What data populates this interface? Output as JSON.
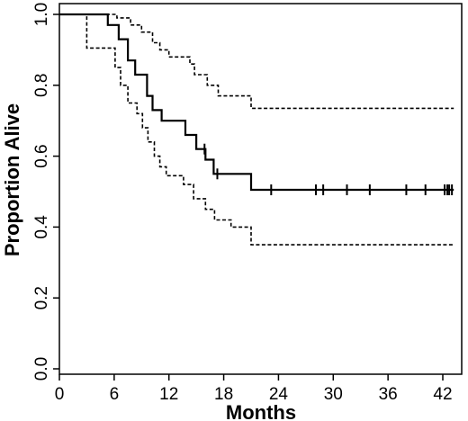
{
  "chart_data": {
    "type": "line",
    "xlabel": "Months",
    "ylabel": "Proportion Alive",
    "xlim": [
      0,
      43.5
    ],
    "ylim": [
      0,
      1.0
    ],
    "x_ticks": [
      "0",
      "6",
      "12",
      "18",
      "24",
      "30",
      "36",
      "42"
    ],
    "y_ticks": [
      "0.0",
      "0.2",
      "0.4",
      "0.6",
      "0.8",
      "1.0"
    ],
    "series": [
      {
        "role": "survival estimate",
        "line_style": "solid",
        "color": "#000000",
        "steps": [
          [
            0,
            1.0
          ],
          [
            5.3,
            1.0
          ],
          [
            5.3,
            0.97
          ],
          [
            6.5,
            0.97
          ],
          [
            6.5,
            0.93
          ],
          [
            7.5,
            0.93
          ],
          [
            7.5,
            0.87
          ],
          [
            8.3,
            0.87
          ],
          [
            8.3,
            0.83
          ],
          [
            9.6,
            0.83
          ],
          [
            9.6,
            0.77
          ],
          [
            10.2,
            0.77
          ],
          [
            10.2,
            0.73
          ],
          [
            11.2,
            0.73
          ],
          [
            11.2,
            0.7
          ],
          [
            13.8,
            0.7
          ],
          [
            13.8,
            0.66
          ],
          [
            15.0,
            0.66
          ],
          [
            15.0,
            0.62
          ],
          [
            16.0,
            0.62
          ],
          [
            16.0,
            0.59
          ],
          [
            16.9,
            0.59
          ],
          [
            16.9,
            0.55
          ],
          [
            21.0,
            0.55
          ],
          [
            21.0,
            0.505
          ],
          [
            43.2,
            0.505
          ]
        ],
        "censor_times": [
          15.9,
          17.3,
          23.2,
          28.1,
          28.9,
          31.5,
          34.0,
          38.0,
          40.1,
          42.2,
          42.5,
          42.7,
          43.0
        ]
      },
      {
        "role": "upper confidence bound",
        "line_style": "dashed",
        "color": "#000000",
        "steps": [
          [
            0,
            1.0
          ],
          [
            6.3,
            1.0
          ],
          [
            6.3,
            0.99
          ],
          [
            7.8,
            0.99
          ],
          [
            7.8,
            0.97
          ],
          [
            9.0,
            0.97
          ],
          [
            9.0,
            0.95
          ],
          [
            10.2,
            0.95
          ],
          [
            10.2,
            0.92
          ],
          [
            11.0,
            0.92
          ],
          [
            11.0,
            0.9
          ],
          [
            12.0,
            0.9
          ],
          [
            12.0,
            0.88
          ],
          [
            14.3,
            0.88
          ],
          [
            14.3,
            0.86
          ],
          [
            14.8,
            0.86
          ],
          [
            14.8,
            0.83
          ],
          [
            16.2,
            0.83
          ],
          [
            16.2,
            0.8
          ],
          [
            17.4,
            0.8
          ],
          [
            17.4,
            0.77
          ],
          [
            21.0,
            0.77
          ],
          [
            21.0,
            0.735
          ],
          [
            43.2,
            0.735
          ]
        ]
      },
      {
        "role": "lower confidence bound",
        "line_style": "dashed",
        "color": "#000000",
        "steps": [
          [
            0,
            1.0
          ],
          [
            3.0,
            1.0
          ],
          [
            3.0,
            0.905
          ],
          [
            6.1,
            0.905
          ],
          [
            6.1,
            0.85
          ],
          [
            6.7,
            0.85
          ],
          [
            6.7,
            0.8
          ],
          [
            7.5,
            0.8
          ],
          [
            7.5,
            0.75
          ],
          [
            8.5,
            0.75
          ],
          [
            8.5,
            0.72
          ],
          [
            9.1,
            0.72
          ],
          [
            9.1,
            0.68
          ],
          [
            9.7,
            0.68
          ],
          [
            9.7,
            0.64
          ],
          [
            10.4,
            0.64
          ],
          [
            10.4,
            0.6
          ],
          [
            11.0,
            0.6
          ],
          [
            11.0,
            0.57
          ],
          [
            11.7,
            0.57
          ],
          [
            11.7,
            0.545
          ],
          [
            13.6,
            0.545
          ],
          [
            13.6,
            0.52
          ],
          [
            14.7,
            0.52
          ],
          [
            14.7,
            0.48
          ],
          [
            16.0,
            0.48
          ],
          [
            16.0,
            0.45
          ],
          [
            17.0,
            0.45
          ],
          [
            17.0,
            0.42
          ],
          [
            18.8,
            0.42
          ],
          [
            18.8,
            0.4
          ],
          [
            21.0,
            0.4
          ],
          [
            21.0,
            0.35
          ],
          [
            43.2,
            0.35
          ]
        ]
      }
    ]
  }
}
